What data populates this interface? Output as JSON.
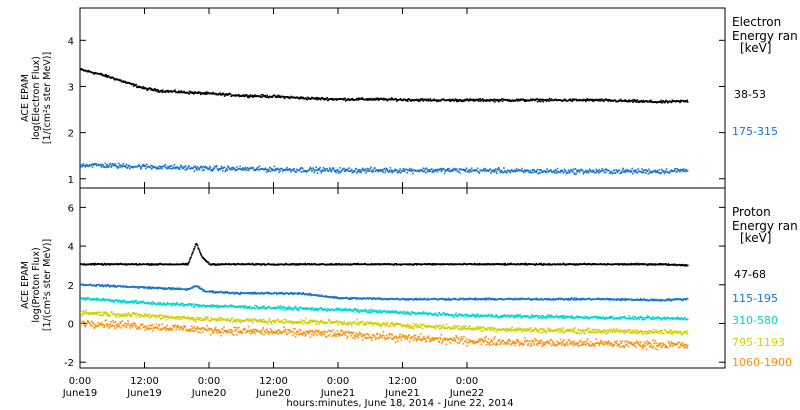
{
  "chart_data": [
    {
      "type": "scatter",
      "panel": "electron",
      "ylabel": [
        "ACE EPAM",
        "log(Electron Flux)",
        "[1/(cm²s ster MeV)]"
      ],
      "ylim": [
        0.8,
        4.7
      ],
      "yticks": [
        1,
        2,
        3,
        4
      ],
      "legend_title": [
        "Electron",
        "Energy ran",
        "[keV]"
      ],
      "series": [
        {
          "name": "38-53",
          "color": "#000000",
          "x": [
            0,
            3,
            6,
            9,
            12,
            15,
            18,
            24,
            30,
            36,
            42,
            48,
            54,
            60,
            66,
            72,
            78,
            84,
            90,
            96,
            102,
            108,
            113
          ],
          "values": [
            3.38,
            3.3,
            3.2,
            3.08,
            2.97,
            2.92,
            2.9,
            2.86,
            2.82,
            2.8,
            2.76,
            2.74,
            2.74,
            2.73,
            2.72,
            2.72,
            2.72,
            2.72,
            2.72,
            2.72,
            2.7,
            2.68,
            2.7
          ],
          "scatter": 0.04
        },
        {
          "name": "175-315",
          "color": "#1874cd",
          "x": [
            0,
            12,
            24,
            36,
            48,
            60,
            72,
            84,
            96,
            108,
            113
          ],
          "values": [
            1.32,
            1.28,
            1.24,
            1.22,
            1.2,
            1.2,
            1.2,
            1.18,
            1.18,
            1.18,
            1.2
          ],
          "scatter": 0.08
        }
      ]
    },
    {
      "type": "scatter",
      "panel": "proton",
      "ylabel": [
        "ACE EPAM",
        "log(Proton Flux)",
        "[1/(cm²s ster MeV)]"
      ],
      "ylim": [
        -2.3,
        7
      ],
      "yticks": [
        -2,
        0,
        2,
        4,
        6
      ],
      "legend_title": [
        "Proton",
        "Energy ran",
        "[keV]"
      ],
      "series": [
        {
          "name": "47-68",
          "color": "#000000",
          "x": [
            0,
            12,
            20,
            21.5,
            22.5,
            24,
            36,
            48,
            60,
            72,
            84,
            96,
            108,
            113
          ],
          "values": [
            3.1,
            3.1,
            3.1,
            4.2,
            3.5,
            3.1,
            3.1,
            3.1,
            3.1,
            3.1,
            3.1,
            3.1,
            3.1,
            3.05
          ],
          "scatter": 0.05
        },
        {
          "name": "115-195",
          "color": "#1874cd",
          "x": [
            0,
            12,
            20,
            21.5,
            23,
            30,
            40,
            44,
            48,
            60,
            72,
            84,
            96,
            108,
            113
          ],
          "values": [
            2.05,
            1.9,
            1.8,
            2.0,
            1.7,
            1.6,
            1.6,
            1.5,
            1.35,
            1.3,
            1.3,
            1.3,
            1.3,
            1.25,
            1.3
          ],
          "scatter": 0.07
        },
        {
          "name": "310-580",
          "color": "#00d5d5",
          "x": [
            0,
            12,
            24,
            36,
            48,
            60,
            72,
            84,
            96,
            108,
            113
          ],
          "values": [
            1.35,
            1.1,
            0.95,
            0.85,
            0.75,
            0.6,
            0.45,
            0.4,
            0.35,
            0.3,
            0.3
          ],
          "scatter": 0.12
        },
        {
          "name": "795-1193",
          "color": "#d0d000",
          "x": [
            0,
            12,
            24,
            36,
            48,
            60,
            72,
            84,
            96,
            108,
            113
          ],
          "values": [
            0.6,
            0.45,
            0.25,
            0.15,
            0.1,
            -0.05,
            -0.2,
            -0.3,
            -0.35,
            -0.4,
            -0.45
          ],
          "scatter": 0.18
        },
        {
          "name": "1060-1900",
          "color": "#ff8c00",
          "x": [
            0,
            12,
            24,
            36,
            48,
            60,
            72,
            84,
            96,
            108,
            113
          ],
          "values": [
            0.1,
            -0.1,
            -0.3,
            -0.4,
            -0.5,
            -0.7,
            -0.85,
            -0.95,
            -1.0,
            -1.05,
            -1.1
          ],
          "scatter": 0.3
        }
      ]
    }
  ],
  "x_axis": {
    "xlabel": "hours:minutes, June 18, 2014 - June 22, 2014",
    "xlim_hours": [
      0,
      120
    ],
    "ticks": [
      {
        "hours": 0,
        "time": "0:00",
        "date": "June19"
      },
      {
        "hours": 12,
        "time": "12:00",
        "date": "June19"
      },
      {
        "hours": 24,
        "time": "0:00",
        "date": "June20"
      },
      {
        "hours": 36,
        "time": "12:00",
        "date": "June20"
      },
      {
        "hours": 48,
        "time": "0:00",
        "date": "June21"
      },
      {
        "hours": 60,
        "time": "12:00",
        "date": "June21"
      },
      {
        "hours": 72,
        "time": "0:00",
        "date": "June22"
      }
    ]
  }
}
